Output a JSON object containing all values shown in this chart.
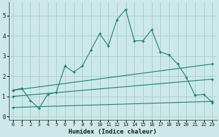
{
  "xlabel": "Humidex (Indice chaleur)",
  "background_color": "#cce8e8",
  "grid_color": "#aacfcf",
  "line_color": "#1a7a6e",
  "xlim": [
    -0.5,
    23.5
  ],
  "ylim": [
    -0.15,
    5.65
  ],
  "xticks": [
    0,
    1,
    2,
    3,
    4,
    5,
    6,
    7,
    8,
    9,
    10,
    11,
    12,
    13,
    14,
    15,
    16,
    17,
    18,
    19,
    20,
    21,
    22,
    23
  ],
  "yticks": [
    0,
    1,
    2,
    3,
    4,
    5
  ],
  "line1_x": [
    0,
    1,
    2,
    3,
    4,
    5,
    6,
    7,
    8,
    9,
    10,
    11,
    12,
    13,
    14,
    15,
    16,
    17,
    18,
    19,
    20,
    21,
    22,
    23
  ],
  "line1_y": [
    1.3,
    1.4,
    0.8,
    0.4,
    1.1,
    1.2,
    2.5,
    2.2,
    2.5,
    3.3,
    4.1,
    3.5,
    4.8,
    5.3,
    3.75,
    3.75,
    4.3,
    3.2,
    3.05,
    2.6,
    1.95,
    1.05,
    1.1,
    0.7
  ],
  "line2_x": [
    0,
    23
  ],
  "line2_y": [
    1.3,
    2.6
  ],
  "line3_x": [
    0,
    23
  ],
  "line3_y": [
    1.0,
    1.85
  ],
  "line4_x": [
    0,
    23
  ],
  "line4_y": [
    0.45,
    0.75
  ]
}
